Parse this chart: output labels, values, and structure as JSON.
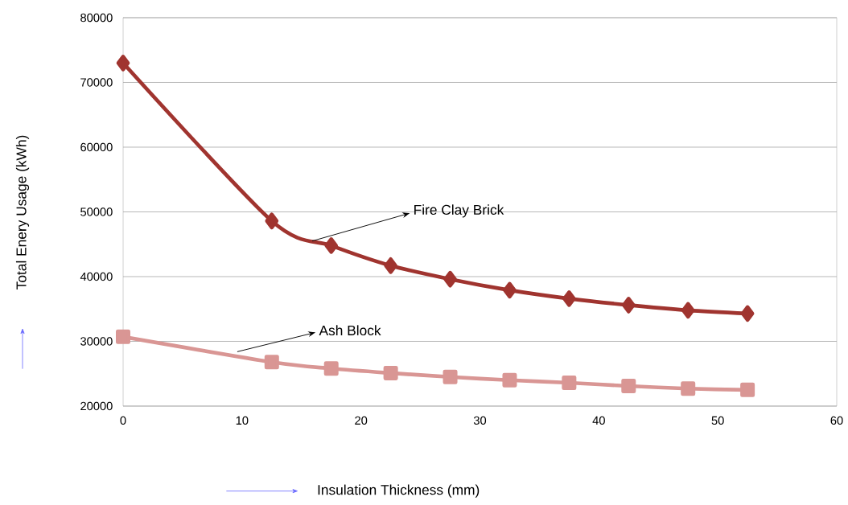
{
  "chart_data": {
    "type": "line",
    "xlabel": "Insulation Thickness (mm)",
    "ylabel": "Total Enery Usage (kWh)",
    "x": [
      0,
      12.5,
      17.5,
      22.5,
      27.5,
      32.5,
      37.5,
      42.5,
      47.5,
      52.5
    ],
    "series": [
      {
        "color": "#a0342f",
        "marker": "diamond",
        "values": [
          73000,
          48600,
          44800,
          41700,
          39600,
          37900,
          36600,
          35600,
          34800,
          34300
        ]
      },
      {
        "color": "#d99694",
        "marker": "square",
        "values": [
          30700,
          26800,
          25800,
          25100,
          24500,
          24000,
          23600,
          23100,
          22700,
          22500
        ]
      }
    ],
    "xlim": [
      0,
      60
    ],
    "xticks": [
      0,
      10,
      20,
      30,
      40,
      50,
      60
    ],
    "ylim": [
      20000,
      80000
    ],
    "yticks": [
      20000,
      30000,
      40000,
      50000,
      60000,
      70000,
      80000
    ],
    "grid": "y",
    "annotations": [
      {
        "text": "Fire Clay Brick",
        "x": 15.9,
        "y": 45500
      },
      {
        "text": "Ash Block",
        "x": 9.6,
        "y": 28400
      }
    ]
  }
}
